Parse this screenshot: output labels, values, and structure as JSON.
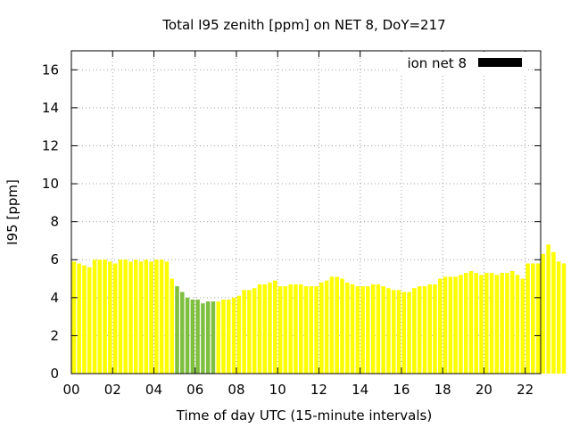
{
  "chart_data": {
    "type": "bar",
    "title": "Total I95 zenith [ppm] on NET 8, DoY=217",
    "xlabel": "Time of day UTC (15-minute intervals)",
    "ylabel": "I95 [ppm]",
    "xlim": [
      0,
      22.75
    ],
    "ylim": [
      0,
      17
    ],
    "xticks": [
      0,
      2,
      4,
      6,
      8,
      10,
      12,
      14,
      16,
      18,
      20,
      22
    ],
    "xtick_labels": [
      "00",
      "02",
      "04",
      "06",
      "08",
      "10",
      "12",
      "14",
      "16",
      "18",
      "20",
      "22"
    ],
    "yticks": [
      0,
      2,
      4,
      6,
      8,
      10,
      12,
      14,
      16
    ],
    "ytick_labels": [
      "0",
      "2",
      "4",
      "6",
      "8",
      "10",
      "12",
      "14",
      "16"
    ],
    "grid": true,
    "legend": {
      "label": "ion net 8",
      "placement": "top-right",
      "color": "#000000"
    },
    "bar_interval_hours": 0.25,
    "colors": {
      "yellow": "#ffff00",
      "green": "#7fbf3f"
    },
    "green_range": [
      5.0,
      7.0
    ],
    "values": [
      5.9,
      5.8,
      5.7,
      5.6,
      6.0,
      6.0,
      6.0,
      5.9,
      5.8,
      6.0,
      6.0,
      5.9,
      6.0,
      5.9,
      6.0,
      5.9,
      6.0,
      6.0,
      5.9,
      5.0,
      4.6,
      4.3,
      4.0,
      3.9,
      3.9,
      3.7,
      3.8,
      3.8,
      3.8,
      3.9,
      3.9,
      4.0,
      4.1,
      4.4,
      4.4,
      4.5,
      4.7,
      4.7,
      4.8,
      4.9,
      4.6,
      4.6,
      4.7,
      4.7,
      4.7,
      4.6,
      4.6,
      4.6,
      4.8,
      4.9,
      5.1,
      5.1,
      5.0,
      4.8,
      4.7,
      4.6,
      4.6,
      4.6,
      4.7,
      4.7,
      4.6,
      4.5,
      4.4,
      4.4,
      4.3,
      4.3,
      4.5,
      4.6,
      4.6,
      4.7,
      4.7,
      5.0,
      5.1,
      5.1,
      5.1,
      5.2,
      5.3,
      5.4,
      5.3,
      5.2,
      5.3,
      5.3,
      5.2,
      5.3,
      5.3,
      5.4,
      5.2,
      5.0,
      5.8,
      5.8,
      5.8,
      6.3,
      6.8,
      6.4,
      5.9,
      5.8
    ]
  }
}
